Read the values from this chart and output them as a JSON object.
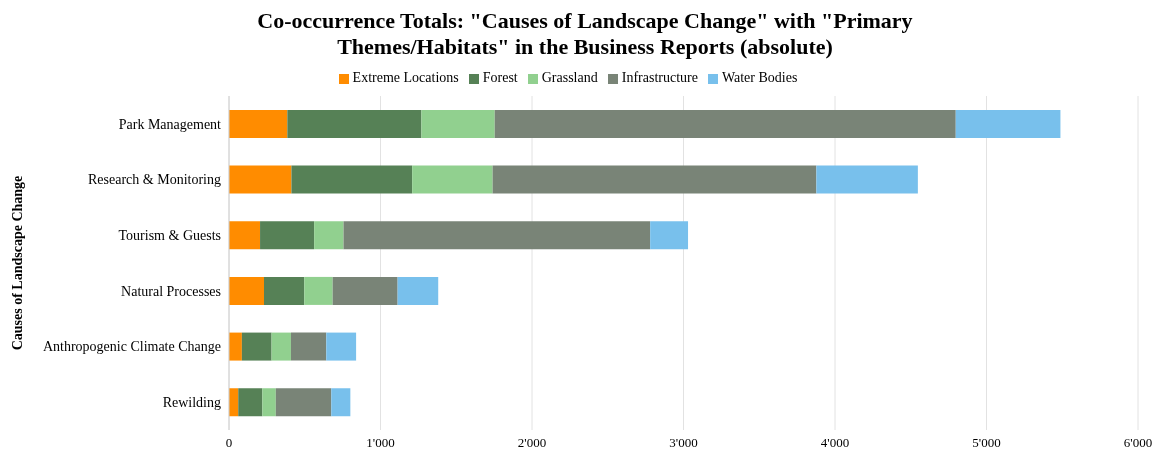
{
  "chart_data": {
    "type": "bar",
    "orientation": "horizontal",
    "stacked": true,
    "title": "Co-occurrence Totals: \"Causes of Landscape Change\" with \"Primary Themes/Habitats\" in the Business Reports (absolute)",
    "ylabel": "Causes of Landscape Change",
    "categories": [
      "Park Management",
      "Research & Monitoring",
      "Tourism & Guests",
      "Natural Processes",
      "Anthropogenic Climate Change",
      "Rewilding"
    ],
    "series": [
      {
        "name": "Extreme Locations",
        "color": "#ff8c00",
        "values": [
          385,
          412,
          205,
          231,
          85,
          61
        ]
      },
      {
        "name": "Forest",
        "color": "#568156",
        "values": [
          885,
          797,
          357,
          266,
          196,
          159
        ]
      },
      {
        "name": "Grassland",
        "color": "#91d08f",
        "values": [
          484,
          531,
          194,
          187,
          128,
          89
        ]
      },
      {
        "name": "Infrastructure",
        "color": "#798477",
        "values": [
          3043,
          2137,
          2024,
          429,
          233,
          366
        ]
      },
      {
        "name": "Water Bodies",
        "color": "#78c0ec",
        "values": [
          691,
          670,
          250,
          268,
          197,
          126
        ]
      }
    ],
    "xlim": [
      0,
      6000
    ],
    "xticks": [
      0,
      {
        "value": 1000,
        "label": "1'000"
      },
      {
        "value": 2000,
        "label": "2'000"
      },
      {
        "value": 3000,
        "label": "3'000"
      },
      {
        "value": 4000,
        "label": "4'000"
      },
      {
        "value": 5000,
        "label": "5'000"
      },
      {
        "value": 6000,
        "label": "6'000"
      }
    ],
    "grid": "x",
    "legend": "top"
  }
}
